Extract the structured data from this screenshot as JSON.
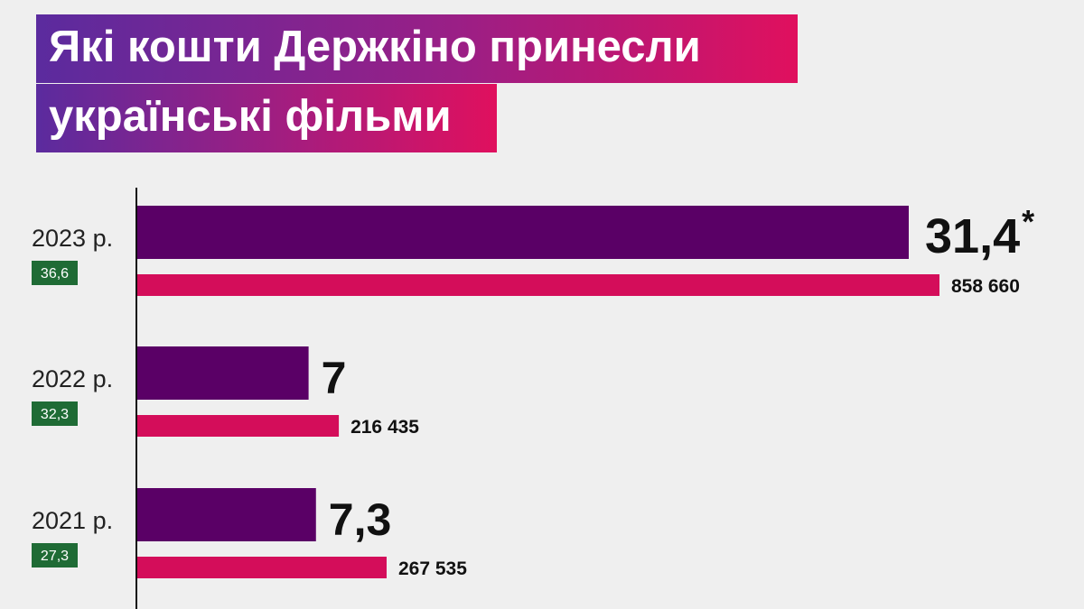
{
  "title": {
    "line1": "Які кошти Держкіно принесли",
    "line2": "українські фільми"
  },
  "colors": {
    "background": "#efefef",
    "primary_bar": "#5a0066",
    "secondary_bar": "#d40d5a",
    "badge": "#1f6b35",
    "axis": "#111111"
  },
  "chart_data": {
    "type": "bar",
    "orientation": "horizontal",
    "categories": [
      "2023 р.",
      "2022 р.",
      "2021 р."
    ],
    "badges": [
      "36,6",
      "32,3",
      "27,3"
    ],
    "series": [
      {
        "values": [
          31.4,
          7,
          7.3
        ],
        "labels": [
          "31,4",
          "7",
          "7,3"
        ]
      },
      {
        "values": [
          858660,
          216435,
          267535
        ],
        "labels": [
          "858 660",
          "216 435",
          "267 535"
        ]
      }
    ],
    "annotations": [
      "*"
    ]
  }
}
